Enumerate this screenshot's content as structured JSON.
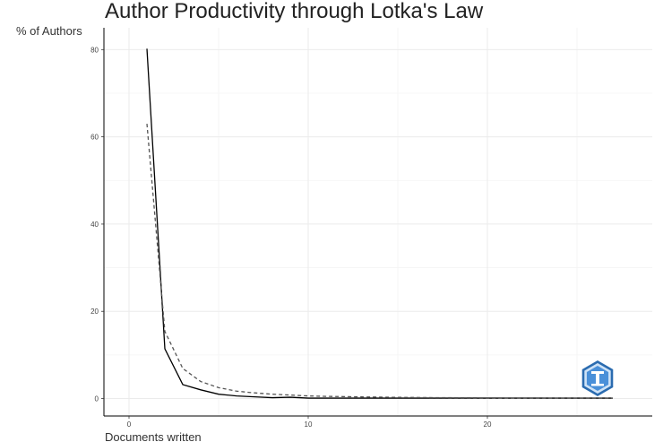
{
  "chart_data": {
    "type": "line",
    "title": "Author Productivity through Lotka's Law",
    "xlabel": "Documents written",
    "ylabel": "% of Authors",
    "xlim": [
      -1.4,
      29.2
    ],
    "ylim": [
      -4,
      85
    ],
    "x_ticks": [
      0,
      10,
      20
    ],
    "y_ticks": [
      0,
      20,
      40,
      60,
      80
    ],
    "grid": true,
    "legend": "none",
    "series": [
      {
        "style": "solid",
        "color": "#000000",
        "points": [
          [
            1,
            80.2
          ],
          [
            2,
            11.4
          ],
          [
            3,
            3.2
          ],
          [
            4,
            2.0
          ],
          [
            5,
            1.0
          ],
          [
            6,
            0.6
          ],
          [
            7,
            0.4
          ],
          [
            8,
            0.2
          ],
          [
            9,
            0.3
          ],
          [
            10,
            0.1
          ],
          [
            11,
            0.1
          ],
          [
            12,
            0.1
          ],
          [
            13,
            0.1
          ],
          [
            14,
            0.1
          ],
          [
            15,
            0.1
          ],
          [
            16,
            0.1
          ],
          [
            17,
            0.1
          ],
          [
            18,
            0.1
          ],
          [
            19,
            0.1
          ],
          [
            20,
            0.1
          ],
          [
            21,
            0.1
          ],
          [
            22,
            0.1
          ],
          [
            23,
            0.1
          ],
          [
            24,
            0.1
          ],
          [
            25,
            0.1
          ],
          [
            26,
            0.1
          ],
          [
            27,
            0.1
          ]
        ]
      },
      {
        "style": "dashed",
        "color": "#555555",
        "points": [
          [
            1,
            63.0
          ],
          [
            2,
            15.4
          ],
          [
            3,
            6.9
          ],
          [
            4,
            3.9
          ],
          [
            5,
            2.5
          ],
          [
            6,
            1.7
          ],
          [
            7,
            1.3
          ],
          [
            8,
            1.0
          ],
          [
            9,
            0.8
          ],
          [
            10,
            0.6
          ],
          [
            11,
            0.5
          ],
          [
            12,
            0.45
          ],
          [
            13,
            0.38
          ],
          [
            14,
            0.33
          ],
          [
            15,
            0.28
          ],
          [
            16,
            0.25
          ],
          [
            17,
            0.22
          ],
          [
            18,
            0.2
          ],
          [
            19,
            0.18
          ],
          [
            20,
            0.16
          ],
          [
            21,
            0.14
          ],
          [
            22,
            0.13
          ],
          [
            23,
            0.12
          ],
          [
            24,
            0.11
          ],
          [
            25,
            0.1
          ],
          [
            26,
            0.1
          ],
          [
            27,
            0.09
          ]
        ]
      }
    ]
  },
  "logo": {
    "name": "bibliometrix-logo-icon",
    "colors": [
      "#2b6cb0",
      "#4a90d9",
      "#cfe3f7"
    ]
  }
}
